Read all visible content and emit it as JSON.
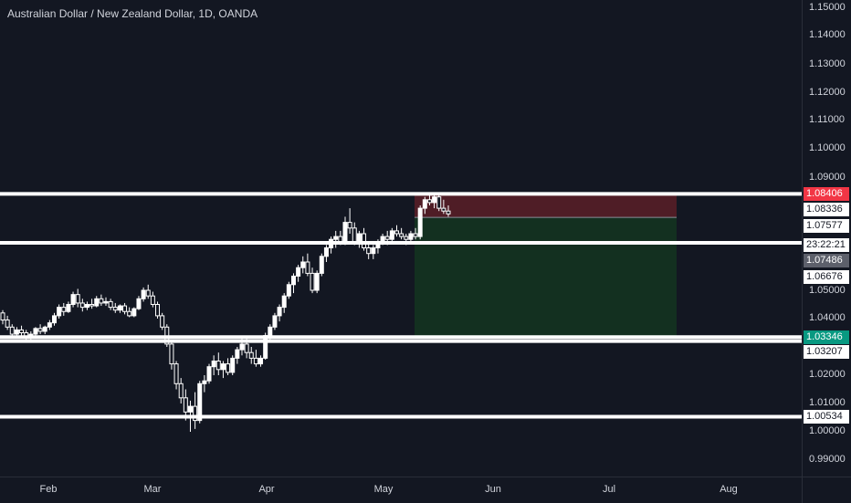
{
  "chart_title": "Australian Dollar / New Zealand Dollar, 1D, OANDA",
  "colors": {
    "background": "#131722",
    "candle": "#ffffff",
    "level_line": "#ffffff",
    "stop_zone": "#5b1f27",
    "target_zone": "#143320",
    "stop_tag": "#f23645",
    "target_tag": "#089981",
    "countdown_tag": "#ffffff",
    "current_tag": "#5d606b"
  },
  "price_axis": {
    "ticks": [
      "1.15000",
      "1.14000",
      "1.13000",
      "1.12000",
      "1.11000",
      "1.10000",
      "1.09000",
      "1.05000",
      "1.04000",
      "1.02000",
      "1.01000",
      "1.00000",
      "0.99000"
    ]
  },
  "time_axis": {
    "months": [
      "Feb",
      "Mar",
      "Apr",
      "May",
      "Jun",
      "Jul",
      "Aug"
    ]
  },
  "tags": {
    "stop": "1.08406",
    "l1": "1.08336",
    "entry": "1.07577",
    "countdown": "23:22:21",
    "current": "1.07486",
    "level2": "1.06676",
    "target": "1.03346",
    "level3": "1.03207",
    "level4": "1.00534"
  },
  "chart_data": {
    "type": "candlestick",
    "title": "Australian Dollar / New Zealand Dollar, 1D, OANDA",
    "ylim": [
      0.985,
      1.156
    ],
    "horizontal_levels": [
      1.08406,
      1.06676,
      1.03207,
      1.00534
    ],
    "position": {
      "stop": 1.08406,
      "entry": 1.07577,
      "target": 1.03346
    },
    "candles": [
      [
        1.042,
        1.043,
        1.038,
        1.0395
      ],
      [
        1.0395,
        1.041,
        1.036,
        1.037
      ],
      [
        1.037,
        1.038,
        1.033,
        1.0345
      ],
      [
        1.0345,
        1.037,
        1.0335,
        1.036
      ],
      [
        1.036,
        1.0375,
        1.034,
        1.035
      ],
      [
        1.035,
        1.036,
        1.032,
        1.0335
      ],
      [
        1.0335,
        1.0355,
        1.0325,
        1.0345
      ],
      [
        1.0345,
        1.037,
        1.034,
        1.0365
      ],
      [
        1.0365,
        1.038,
        1.0345,
        1.0355
      ],
      [
        1.0355,
        1.0375,
        1.0345,
        1.037
      ],
      [
        1.037,
        1.0395,
        1.036,
        1.0385
      ],
      [
        1.0385,
        1.042,
        1.0375,
        1.041
      ],
      [
        1.041,
        1.045,
        1.04,
        1.044
      ],
      [
        1.044,
        1.0455,
        1.041,
        1.0425
      ],
      [
        1.0425,
        1.046,
        1.042,
        1.045
      ],
      [
        1.045,
        1.0495,
        1.044,
        1.0485
      ],
      [
        1.0485,
        1.0505,
        1.044,
        1.0455
      ],
      [
        1.0455,
        1.047,
        1.0425,
        1.044
      ],
      [
        1.044,
        1.046,
        1.043,
        1.045
      ],
      [
        1.045,
        1.047,
        1.0435,
        1.0445
      ],
      [
        1.0445,
        1.048,
        1.044,
        1.047
      ],
      [
        1.047,
        1.0485,
        1.0445,
        1.0455
      ],
      [
        1.0455,
        1.0475,
        1.0445,
        1.046
      ],
      [
        1.046,
        1.047,
        1.043,
        1.044
      ],
      [
        1.044,
        1.0455,
        1.042,
        1.043
      ],
      [
        1.043,
        1.045,
        1.042,
        1.0445
      ],
      [
        1.0445,
        1.0455,
        1.0415,
        1.0425
      ],
      [
        1.0425,
        1.044,
        1.0405,
        1.041
      ],
      [
        1.041,
        1.044,
        1.0405,
        1.0435
      ],
      [
        1.0435,
        1.048,
        1.043,
        1.047
      ],
      [
        1.047,
        1.051,
        1.046,
        1.05
      ],
      [
        1.05,
        1.052,
        1.047,
        1.048
      ],
      [
        1.048,
        1.0495,
        1.044,
        1.045
      ],
      [
        1.045,
        1.046,
        1.04,
        1.041
      ],
      [
        1.041,
        1.042,
        1.036,
        1.037
      ],
      [
        1.037,
        1.038,
        1.03,
        1.031
      ],
      [
        1.031,
        1.032,
        1.022,
        1.024
      ],
      [
        1.024,
        1.025,
        1.015,
        1.017
      ],
      [
        1.017,
        1.019,
        1.01,
        1.012
      ],
      [
        1.012,
        1.015,
        1.004,
        1.007
      ],
      [
        1.007,
        1.011,
        1.0,
        1.009
      ],
      [
        1.009,
        1.014,
        1.001,
        1.004
      ],
      [
        1.004,
        1.018,
        1.003,
        1.017
      ],
      [
        1.017,
        1.02,
        1.014,
        1.018
      ],
      [
        1.018,
        1.024,
        1.017,
        1.023
      ],
      [
        1.023,
        1.027,
        1.02,
        1.025
      ],
      [
        1.025,
        1.028,
        1.02,
        1.022
      ],
      [
        1.022,
        1.025,
        1.019,
        1.024
      ],
      [
        1.024,
        1.026,
        1.02,
        1.021
      ],
      [
        1.021,
        1.027,
        1.02,
        1.026
      ],
      [
        1.026,
        1.03,
        1.024,
        1.029
      ],
      [
        1.029,
        1.033,
        1.027,
        1.031
      ],
      [
        1.031,
        1.033,
        1.026,
        1.028
      ],
      [
        1.028,
        1.03,
        1.024,
        1.026
      ],
      [
        1.026,
        1.029,
        1.023,
        1.024
      ],
      [
        1.024,
        1.027,
        1.023,
        1.026
      ],
      [
        1.026,
        1.035,
        1.0255,
        1.034
      ],
      [
        1.034,
        1.038,
        1.032,
        1.037
      ],
      [
        1.037,
        1.042,
        1.036,
        1.041
      ],
      [
        1.041,
        1.045,
        1.039,
        1.044
      ],
      [
        1.044,
        1.049,
        1.042,
        1.048
      ],
      [
        1.048,
        1.053,
        1.047,
        1.052
      ],
      [
        1.052,
        1.056,
        1.049,
        1.055
      ],
      [
        1.055,
        1.059,
        1.053,
        1.058
      ],
      [
        1.058,
        1.062,
        1.056,
        1.06
      ],
      [
        1.06,
        1.063,
        1.055,
        1.056
      ],
      [
        1.056,
        1.058,
        1.049,
        1.05
      ],
      [
        1.05,
        1.057,
        1.049,
        1.056
      ],
      [
        1.056,
        1.063,
        1.055,
        1.062
      ],
      [
        1.062,
        1.066,
        1.06,
        1.065
      ],
      [
        1.065,
        1.069,
        1.063,
        1.068
      ],
      [
        1.068,
        1.071,
        1.065,
        1.069
      ],
      [
        1.069,
        1.071,
        1.066,
        1.067
      ],
      [
        1.067,
        1.076,
        1.066,
        1.074
      ],
      [
        1.074,
        1.079,
        1.07,
        1.072
      ],
      [
        1.072,
        1.074,
        1.066,
        1.067
      ],
      [
        1.067,
        1.071,
        1.065,
        1.07
      ],
      [
        1.07,
        1.072,
        1.064,
        1.065
      ],
      [
        1.065,
        1.067,
        1.061,
        1.063
      ],
      [
        1.063,
        1.066,
        1.061,
        1.065
      ],
      [
        1.065,
        1.068,
        1.063,
        1.067
      ],
      [
        1.067,
        1.07,
        1.066,
        1.069
      ],
      [
        1.069,
        1.071,
        1.066,
        1.068
      ],
      [
        1.068,
        1.072,
        1.067,
        1.071
      ],
      [
        1.071,
        1.073,
        1.069,
        1.07
      ],
      [
        1.07,
        1.072,
        1.068,
        1.069
      ],
      [
        1.069,
        1.07,
        1.066,
        1.068
      ],
      [
        1.068,
        1.071,
        1.067,
        1.07
      ],
      [
        1.07,
        1.072,
        1.068,
        1.069
      ],
      [
        1.069,
        1.08,
        1.068,
        1.079
      ],
      [
        1.079,
        1.083,
        1.077,
        1.082
      ],
      [
        1.082,
        1.084,
        1.08,
        1.081
      ],
      [
        1.081,
        1.084,
        1.079,
        1.083
      ],
      [
        1.083,
        1.084,
        1.078,
        1.079
      ],
      [
        1.079,
        1.082,
        1.077,
        1.078
      ],
      [
        1.078,
        1.08,
        1.076,
        1.077
      ]
    ]
  }
}
